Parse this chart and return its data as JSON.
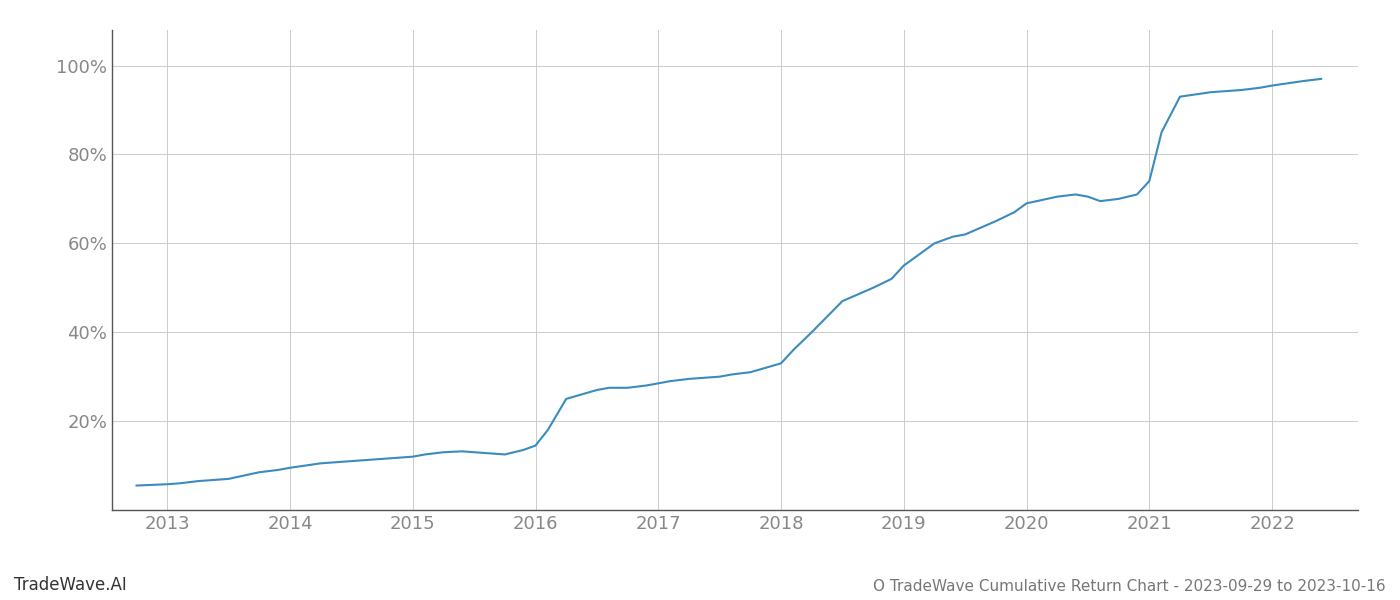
{
  "title": "O TradeWave Cumulative Return Chart - 2023-09-29 to 2023-10-16",
  "watermark": "TradeWave.AI",
  "line_color": "#3a8bbf",
  "line_width": 1.5,
  "background_color": "#ffffff",
  "grid_color": "#cccccc",
  "grid_linewidth": 0.7,
  "x_years": [
    2013,
    2014,
    2015,
    2016,
    2017,
    2018,
    2019,
    2020,
    2021,
    2022
  ],
  "data_x": [
    2012.75,
    2013.0,
    2013.1,
    2013.25,
    2013.5,
    2013.75,
    2013.9,
    2014.0,
    2014.25,
    2014.5,
    2014.75,
    2014.9,
    2015.0,
    2015.1,
    2015.25,
    2015.4,
    2015.5,
    2015.6,
    2015.75,
    2015.9,
    2016.0,
    2016.1,
    2016.25,
    2016.5,
    2016.6,
    2016.75,
    2016.9,
    2017.0,
    2017.1,
    2017.25,
    2017.5,
    2017.6,
    2017.75,
    2018.0,
    2018.1,
    2018.25,
    2018.5,
    2018.75,
    2018.9,
    2019.0,
    2019.25,
    2019.4,
    2019.5,
    2019.75,
    2019.9,
    2020.0,
    2020.25,
    2020.4,
    2020.5,
    2020.6,
    2020.75,
    2020.9,
    2021.0,
    2021.1,
    2021.25,
    2021.5,
    2021.75,
    2021.9,
    2022.0,
    2022.25,
    2022.4
  ],
  "data_y": [
    5.5,
    5.8,
    6.0,
    6.5,
    7.0,
    8.5,
    9.0,
    9.5,
    10.5,
    11.0,
    11.5,
    11.8,
    12.0,
    12.5,
    13.0,
    13.2,
    13.0,
    12.8,
    12.5,
    13.5,
    14.5,
    18.0,
    25.0,
    27.0,
    27.5,
    27.5,
    28.0,
    28.5,
    29.0,
    29.5,
    30.0,
    30.5,
    31.0,
    33.0,
    36.0,
    40.0,
    47.0,
    50.0,
    52.0,
    55.0,
    60.0,
    61.5,
    62.0,
    65.0,
    67.0,
    69.0,
    70.5,
    71.0,
    70.5,
    69.5,
    70.0,
    71.0,
    74.0,
    85.0,
    93.0,
    94.0,
    94.5,
    95.0,
    95.5,
    96.5,
    97.0
  ],
  "ylim": [
    0,
    108
  ],
  "xlim": [
    2012.55,
    2022.7
  ],
  "yticks": [
    20,
    40,
    60,
    80,
    100
  ],
  "ytick_labels": [
    "20%",
    "40%",
    "60%",
    "80%",
    "100%"
  ],
  "title_fontsize": 11,
  "tick_fontsize": 13,
  "watermark_fontsize": 12,
  "title_color": "#777777",
  "tick_color": "#888888",
  "watermark_color": "#333333",
  "spine_color": "#555555"
}
